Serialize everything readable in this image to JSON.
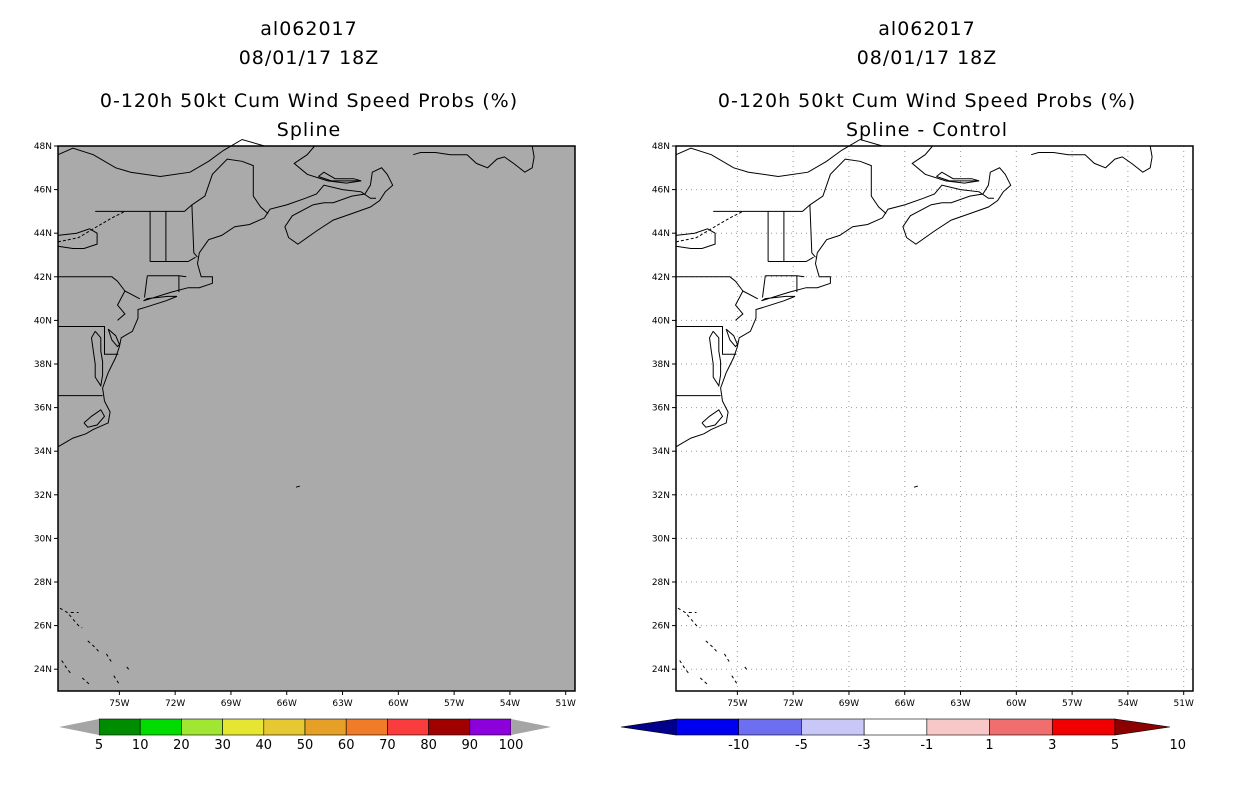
{
  "panels": [
    {
      "id": "left",
      "storm_id": "al062017",
      "datetime": "08/01/17 18Z",
      "product": "0-120h 50kt Cum Wind Speed Probs (%)",
      "subtitle": "Spline",
      "background_color": "#aaaaaa",
      "grid": false,
      "colorbar": {
        "colors": [
          "#008c00",
          "#00dc00",
          "#a0e632",
          "#e6e632",
          "#e6c832",
          "#e6a028",
          "#f07c28",
          "#fa3c3c",
          "#a00000",
          "#8c00dc"
        ],
        "end_color": "#a5a5a5",
        "labels": [
          "5",
          "10",
          "20",
          "30",
          "40",
          "50",
          "60",
          "70",
          "80",
          "90",
          "100"
        ]
      }
    },
    {
      "id": "right",
      "storm_id": "al062017",
      "datetime": "08/01/17 18Z",
      "product": "0-120h 50kt Cum Wind Speed Probs (%)",
      "subtitle": "Spline - Control",
      "background_color": "#ffffff",
      "grid": true,
      "colorbar": {
        "colors": [
          "#0000f0",
          "#6e6ef0",
          "#c8c8f8",
          "#ffffff",
          "#f8c8c8",
          "#f06e6e",
          "#f00000"
        ],
        "start_color": "#00008c",
        "end_color": "#8c0000",
        "labels": [
          "-10",
          "-5",
          "-3",
          "-1",
          "1",
          "3",
          "5",
          "10"
        ]
      }
    }
  ],
  "axes": {
    "lat_labels": [
      "48N",
      "46N",
      "44N",
      "42N",
      "40N",
      "38N",
      "36N",
      "34N",
      "32N",
      "30N",
      "28N",
      "26N",
      "24N"
    ],
    "lat_values": [
      48,
      46,
      44,
      42,
      40,
      38,
      36,
      34,
      32,
      30,
      28,
      26,
      24
    ],
    "lon_labels": [
      "75W",
      "72W",
      "69W",
      "66W",
      "63W",
      "60W",
      "57W",
      "54W",
      "51W"
    ],
    "lon_values": [
      -75,
      -72,
      -69,
      -66,
      -63,
      -60,
      -57,
      -54,
      -51
    ],
    "lat_range": [
      23,
      48
    ],
    "lon_range": [
      -78.3,
      -50.5
    ]
  }
}
